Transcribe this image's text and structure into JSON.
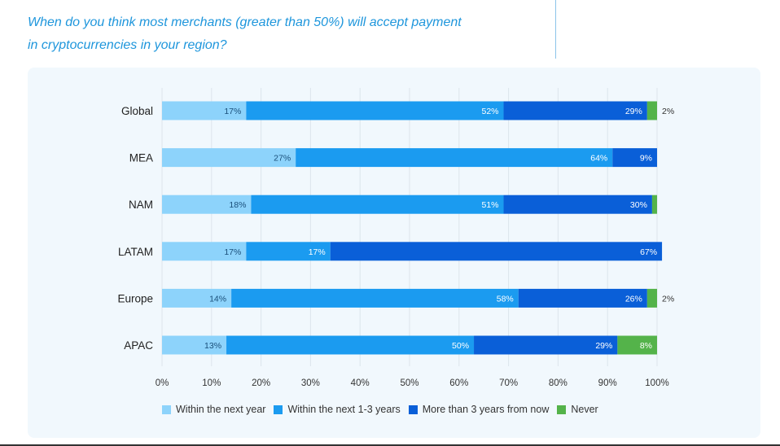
{
  "question": {
    "line1": "When do you think most merchants (greater than 50%) will accept payment",
    "line2": "in cryptocurrencies in your region?"
  },
  "colors": {
    "within_next_year": "#8dd3fb",
    "within_1_3_years": "#1b9bf0",
    "more_than_3_years": "#0a5fd8",
    "never": "#54b34a",
    "question_text": "#1e96dc",
    "panel_bg": "#f1f8fd"
  },
  "chart_data": {
    "type": "bar",
    "orientation": "horizontal",
    "stacked": true,
    "categories": [
      "Global",
      "MEA",
      "NAM",
      "LATAM",
      "Europe",
      "APAC"
    ],
    "series": [
      {
        "name": "Within the next year",
        "values": [
          17,
          27,
          18,
          17,
          14,
          13
        ]
      },
      {
        "name": "Within the next 1-3 years",
        "values": [
          52,
          64,
          51,
          17,
          58,
          50
        ]
      },
      {
        "name": "More than 3 years from now",
        "values": [
          29,
          9,
          30,
          67,
          26,
          29
        ]
      },
      {
        "name": "Never",
        "values": [
          2,
          0,
          1,
          0,
          2,
          8
        ]
      }
    ],
    "value_labels": [
      [
        "17%",
        "52%",
        "29%",
        "2%"
      ],
      [
        "27%",
        "64%",
        "9%",
        ""
      ],
      [
        "18%",
        "51%",
        "30%",
        ""
      ],
      [
        "17%",
        "17%",
        "67%",
        ""
      ],
      [
        "14%",
        "58%",
        "26%",
        "2%"
      ],
      [
        "13%",
        "50%",
        "29%",
        "8%"
      ]
    ],
    "xlim": [
      0,
      100
    ],
    "xticks": [
      "0%",
      "10%",
      "20%",
      "30%",
      "40%",
      "50%",
      "60%",
      "70%",
      "80%",
      "90%",
      "100%"
    ],
    "grid": true,
    "legend_position": "bottom"
  }
}
